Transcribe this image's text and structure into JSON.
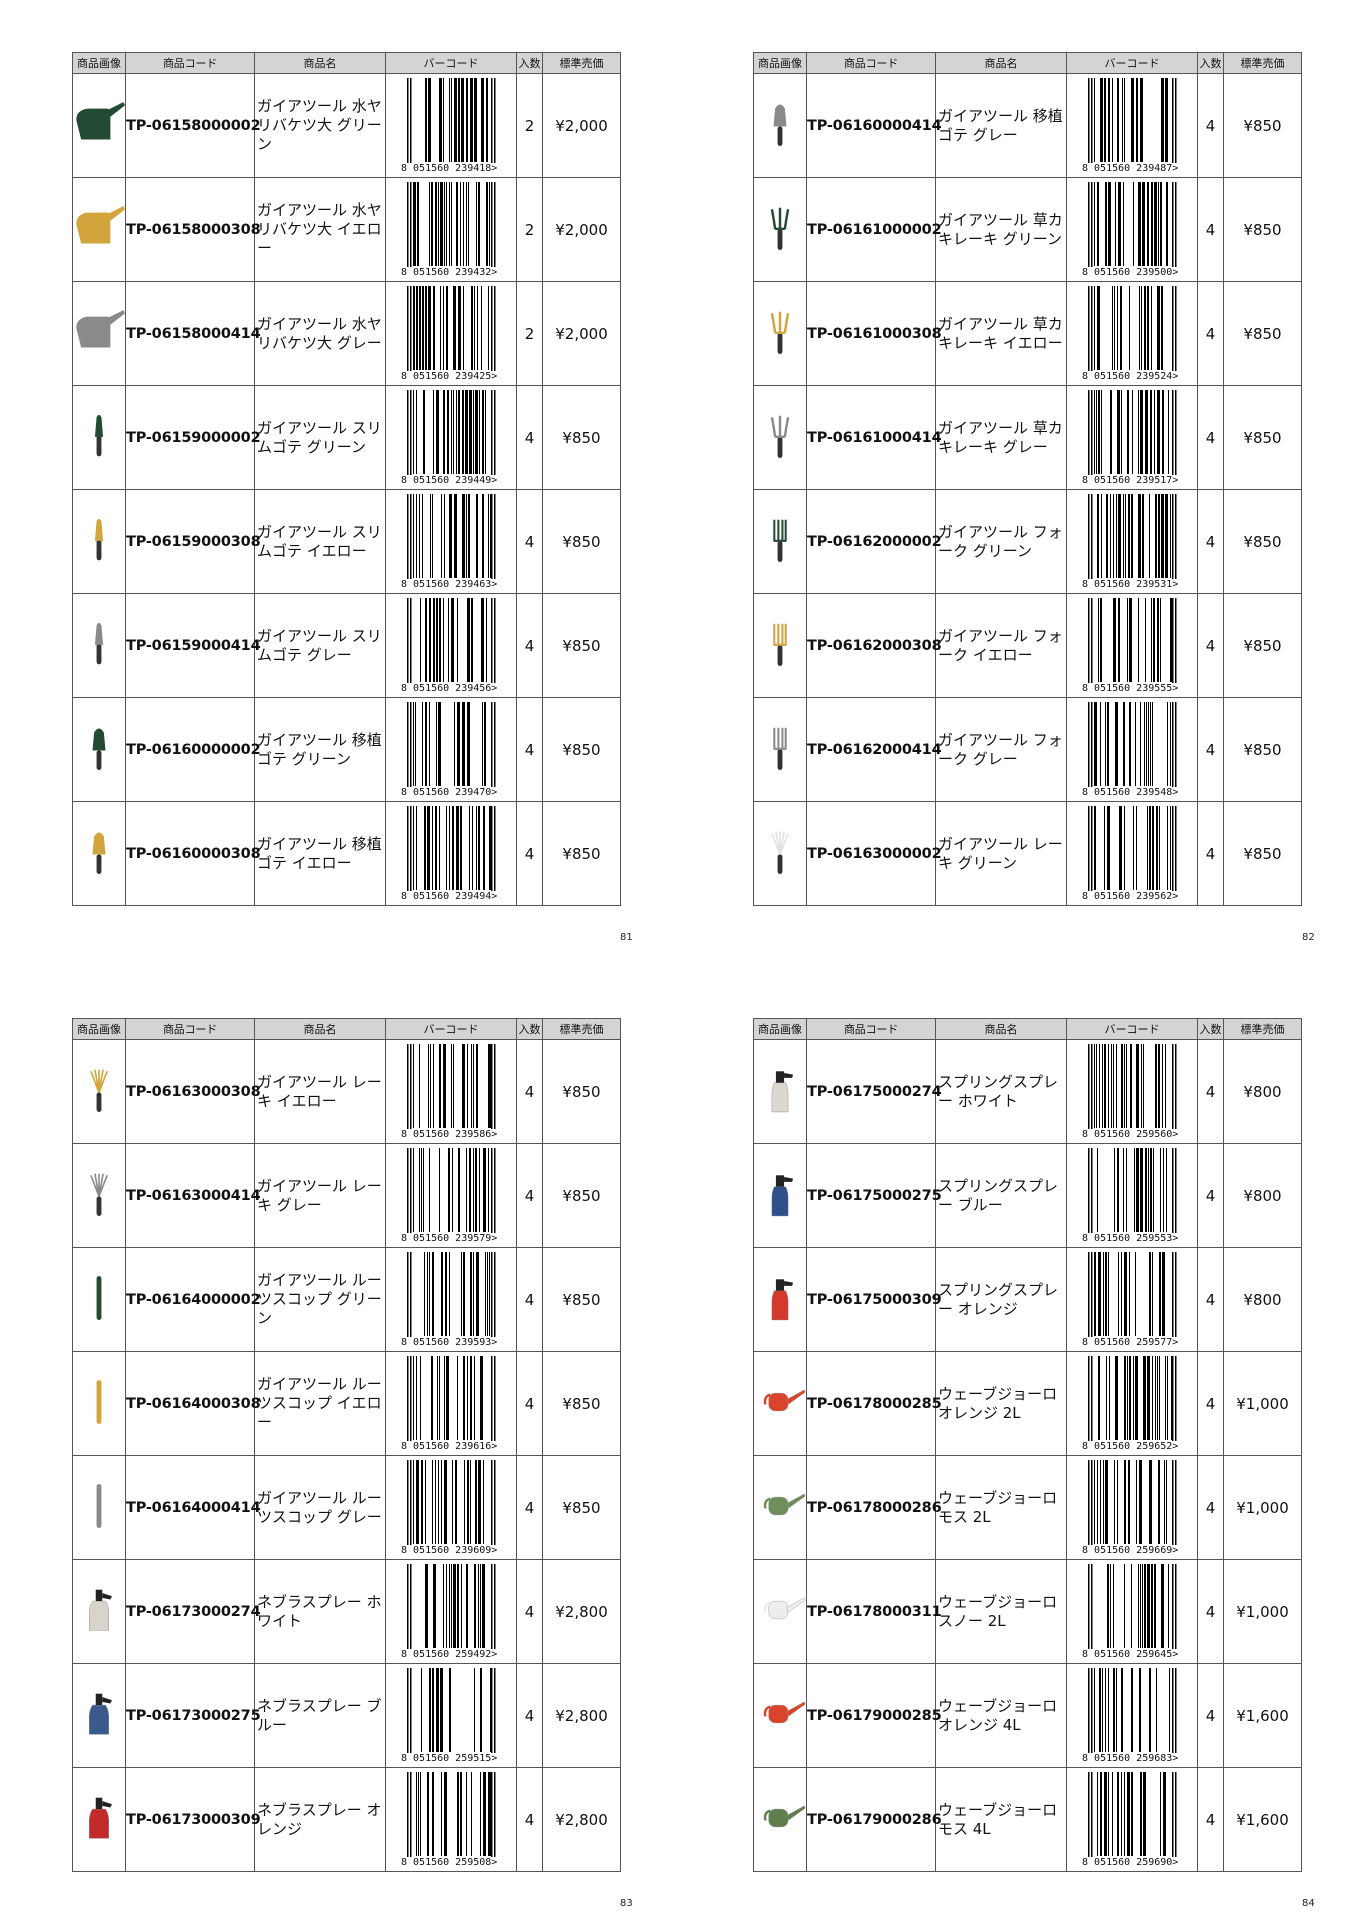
{
  "headers": [
    "商品画像",
    "商品コード",
    "商品名",
    "バーコード",
    "入数",
    "標準売価"
  ],
  "pages": [
    {
      "number": "81",
      "items": [
        {
          "code": "TP-06158000002",
          "name": "ガイアツール 水ヤリバケツ大 グリーン",
          "barcode": "8 051560 239418>",
          "qty": "2",
          "price": "¥2,000",
          "icon": "watering-can",
          "color": "#234a33"
        },
        {
          "code": "TP-06158000308",
          "name": "ガイアツール 水ヤリバケツ大 イエロー",
          "barcode": "8 051560 239432>",
          "qty": "2",
          "price": "¥2,000",
          "icon": "watering-can",
          "color": "#d1a43c"
        },
        {
          "code": "TP-06158000414",
          "name": "ガイアツール 水ヤリバケツ大 グレー",
          "barcode": "8 051560 239425>",
          "qty": "2",
          "price": "¥2,000",
          "icon": "watering-can",
          "color": "#8a8a8a"
        },
        {
          "code": "TP-06159000002",
          "name": "ガイアツール スリムゴテ グリーン",
          "barcode": "8 051560 239449>",
          "qty": "4",
          "price": "¥850",
          "icon": "slim-trowel",
          "color": "#234a33"
        },
        {
          "code": "TP-06159000308",
          "name": "ガイアツール スリムゴテ イエロー",
          "barcode": "8 051560 239463>",
          "qty": "4",
          "price": "¥850",
          "icon": "slim-trowel",
          "color": "#d1a43c"
        },
        {
          "code": "TP-06159000414",
          "name": "ガイアツール スリムゴテ グレー",
          "barcode": "8 051560 239456>",
          "qty": "4",
          "price": "¥850",
          "icon": "slim-trowel",
          "color": "#8a8a8a"
        },
        {
          "code": "TP-06160000002",
          "name": "ガイアツール 移植ゴテ グリーン",
          "barcode": "8 051560 239470>",
          "qty": "4",
          "price": "¥850",
          "icon": "trowel",
          "color": "#234a33"
        },
        {
          "code": "TP-06160000308",
          "name": "ガイアツール 移植ゴテ イエロー",
          "barcode": "8 051560 239494>",
          "qty": "4",
          "price": "¥850",
          "icon": "trowel",
          "color": "#d1a43c"
        }
      ]
    },
    {
      "number": "82",
      "items": [
        {
          "code": "TP-06160000414",
          "name": "ガイアツール 移植ゴテ グレー",
          "barcode": "8 051560 239487>",
          "qty": "4",
          "price": "¥850",
          "icon": "trowel",
          "color": "#8a8a8a"
        },
        {
          "code": "TP-06161000002",
          "name": "ガイアツール 草カキレーキ グリーン",
          "barcode": "8 051560 239500>",
          "qty": "4",
          "price": "¥850",
          "icon": "cultivator",
          "color": "#234a33"
        },
        {
          "code": "TP-06161000308",
          "name": "ガイアツール 草カキレーキ イエロー",
          "barcode": "8 051560 239524>",
          "qty": "4",
          "price": "¥850",
          "icon": "cultivator",
          "color": "#d1a43c"
        },
        {
          "code": "TP-06161000414",
          "name": "ガイアツール 草カキレーキ グレー",
          "barcode": "8 051560 239517>",
          "qty": "4",
          "price": "¥850",
          "icon": "cultivator",
          "color": "#8a8a8a"
        },
        {
          "code": "TP-06162000002",
          "name": "ガイアツール フォーク グリーン",
          "barcode": "8 051560 239531>",
          "qty": "4",
          "price": "¥850",
          "icon": "fork",
          "color": "#234a33"
        },
        {
          "code": "TP-06162000308",
          "name": "ガイアツール フォーク イエロー",
          "barcode": "8 051560 239555>",
          "qty": "4",
          "price": "¥850",
          "icon": "fork",
          "color": "#d1a43c"
        },
        {
          "code": "TP-06162000414",
          "name": "ガイアツール フォーク グレー",
          "barcode": "8 051560 239548>",
          "qty": "4",
          "price": "¥850",
          "icon": "fork",
          "color": "#8a8a8a"
        },
        {
          "code": "TP-06163000002",
          "name": "ガイアツール レーキ グリーン",
          "barcode": "8 051560 239562>",
          "qty": "4",
          "price": "¥850",
          "icon": "rake",
          "color": "#234a33"
        }
      ]
    },
    {
      "number": "83",
      "items": [
        {
          "code": "TP-06163000308",
          "name": "ガイアツール レーキ イエロー",
          "barcode": "8 051560 239586>",
          "qty": "4",
          "price": "¥850",
          "icon": "rake",
          "color": "#d1a43c"
        },
        {
          "code": "TP-06163000414",
          "name": "ガイアツール レーキ グレー",
          "barcode": "8 051560 239579>",
          "qty": "4",
          "price": "¥850",
          "icon": "rake",
          "color": "#8a8a8a"
        },
        {
          "code": "TP-06164000002",
          "name": "ガイアツール ルーツスコップ グリーン",
          "barcode": "8 051560 239593>",
          "qty": "4",
          "price": "¥850",
          "icon": "root-scoop",
          "color": "#234a33"
        },
        {
          "code": "TP-06164000308",
          "name": "ガイアツール ルーツスコップ イエロー",
          "barcode": "8 051560 239616>",
          "qty": "4",
          "price": "¥850",
          "icon": "root-scoop",
          "color": "#d1a43c"
        },
        {
          "code": "TP-06164000414",
          "name": "ガイアツール ルーツスコップ グレー",
          "barcode": "8 051560 239609>",
          "qty": "4",
          "price": "¥850",
          "icon": "root-scoop",
          "color": "#8a8a8a"
        },
        {
          "code": "TP-06173000274",
          "name": "ネブラスプレー ホワイト",
          "barcode": "8 051560 259492>",
          "qty": "4",
          "price": "¥2,800",
          "icon": "pressure-sprayer",
          "color": "#d8d4cc"
        },
        {
          "code": "TP-06173000275",
          "name": "ネブラスプレー ブルー",
          "barcode": "8 051560 259515>",
          "qty": "4",
          "price": "¥2,800",
          "icon": "pressure-sprayer",
          "color": "#3b5a8c"
        },
        {
          "code": "TP-06173000309",
          "name": "ネブラスプレー オレンジ",
          "barcode": "8 051560 259508>",
          "qty": "4",
          "price": "¥2,800",
          "icon": "pressure-sprayer",
          "color": "#c42a2a"
        }
      ]
    },
    {
      "number": "84",
      "items": [
        {
          "code": "TP-06175000274",
          "name": "スプリングスプレー ホワイト",
          "barcode": "8 051560 259560>",
          "qty": "4",
          "price": "¥800",
          "icon": "spray-bottle",
          "color": "#dcd8cf"
        },
        {
          "code": "TP-06175000275",
          "name": "スプリングスプレー ブルー",
          "barcode": "8 051560 259553>",
          "qty": "4",
          "price": "¥800",
          "icon": "spray-bottle",
          "color": "#2f4f8a"
        },
        {
          "code": "TP-06175000309",
          "name": "スプリングスプレー オレンジ",
          "barcode": "8 051560 259577>",
          "qty": "4",
          "price": "¥800",
          "icon": "spray-bottle",
          "color": "#d43a2c"
        },
        {
          "code": "TP-06178000285",
          "name": "ウェーブジョーロ オレンジ 2L",
          "barcode": "8 051560 259652>",
          "qty": "4",
          "price": "¥1,000",
          "icon": "watering-can-long",
          "color": "#d9452c"
        },
        {
          "code": "TP-06178000286",
          "name": "ウェーブジョーロ モス 2L",
          "barcode": "8 051560 259669>",
          "qty": "4",
          "price": "¥1,000",
          "icon": "watering-can-long",
          "color": "#6e8f5c"
        },
        {
          "code": "TP-06178000311",
          "name": "ウェーブジョーロ スノー 2L",
          "barcode": "8 051560 259645>",
          "qty": "4",
          "price": "¥1,000",
          "icon": "watering-can-long",
          "color": "#ededed"
        },
        {
          "code": "TP-06179000285",
          "name": "ウェーブジョーロ オレンジ 4L",
          "barcode": "8 051560 259683>",
          "qty": "4",
          "price": "¥1,600",
          "icon": "watering-can-long",
          "color": "#d9452c"
        },
        {
          "code": "TP-06179000286",
          "name": "ウェーブジョーロ モス 4L",
          "barcode": "8 051560 259690>",
          "qty": "4",
          "price": "¥1,600",
          "icon": "watering-can-long",
          "color": "#5f7f4f"
        }
      ]
    }
  ]
}
